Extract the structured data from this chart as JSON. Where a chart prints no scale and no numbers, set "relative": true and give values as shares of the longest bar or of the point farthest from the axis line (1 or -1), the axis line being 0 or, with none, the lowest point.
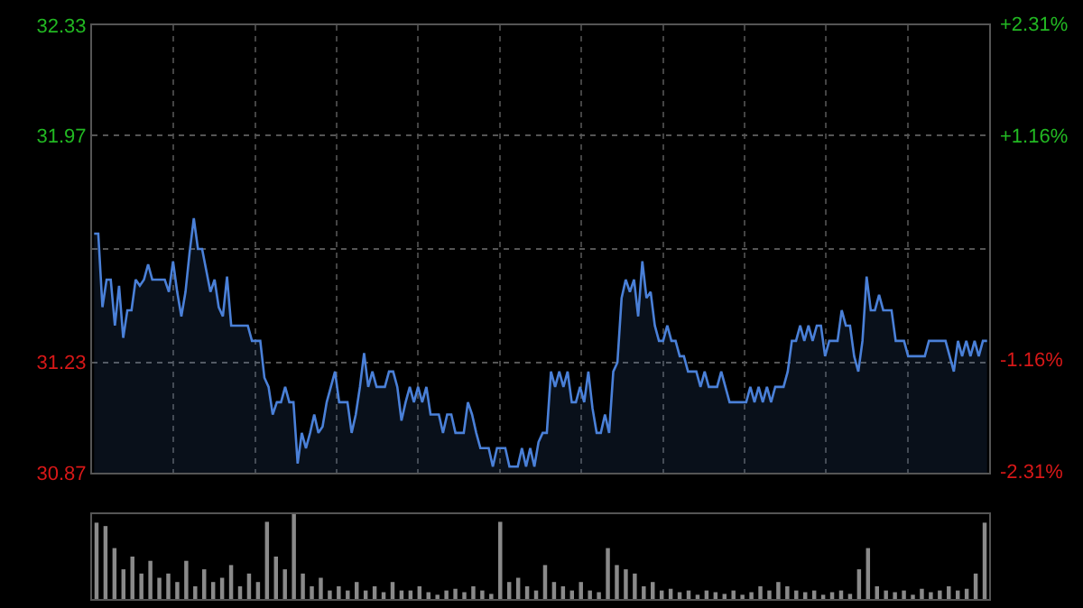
{
  "chart_data": [
    {
      "type": "area",
      "grid": true,
      "tick_labels": "y",
      "categories": [
        null,
        null,
        null,
        null,
        null,
        null,
        null,
        null,
        null,
        null,
        null,
        null,
        null,
        null,
        null,
        null,
        null,
        null,
        null,
        null,
        null,
        null,
        null,
        null,
        null,
        null,
        null,
        null,
        null,
        null,
        null,
        null,
        null,
        null,
        null,
        null,
        null,
        null,
        null,
        null,
        null,
        null,
        null,
        null,
        null,
        null,
        null,
        null,
        null,
        null,
        null,
        null,
        null,
        null,
        null,
        null,
        null,
        null,
        null,
        null,
        null,
        null,
        null,
        null,
        null,
        null,
        null,
        null,
        null,
        null,
        null,
        null,
        null,
        null,
        null,
        null,
        null,
        null,
        null,
        null,
        null,
        null,
        null,
        null,
        null,
        null,
        null,
        null,
        null,
        null,
        null,
        null,
        null,
        null,
        null,
        null,
        null,
        null,
        null,
        null,
        null,
        null,
        null,
        null,
        null,
        null,
        null,
        null,
        null,
        null,
        null,
        null,
        null,
        null,
        null,
        null,
        null,
        null,
        null,
        null,
        null,
        null,
        null,
        null,
        null,
        null,
        null,
        null,
        null,
        null,
        null,
        null,
        null,
        null,
        null,
        null,
        null,
        null,
        null,
        null,
        null,
        null,
        null,
        null,
        null,
        null,
        null,
        null,
        null,
        null,
        null,
        null,
        null,
        null,
        null,
        null,
        null,
        null,
        null,
        null,
        null,
        null,
        null,
        null,
        null,
        null,
        null,
        null,
        null,
        null,
        null,
        null,
        null,
        null,
        null,
        null,
        null,
        null,
        null,
        null,
        null,
        null,
        null,
        null,
        null,
        null,
        null,
        null,
        null,
        null,
        null,
        null,
        null,
        null,
        null,
        null,
        null,
        null,
        null,
        null,
        null,
        null,
        null,
        null,
        null,
        null,
        null,
        null,
        null,
        null,
        null,
        null,
        null,
        null,
        null,
        null
      ],
      "series": [
        {
          "color": "#4a80d8",
          "values": [
            31.65,
            31.65,
            31.41,
            31.5,
            31.5,
            31.35,
            31.48,
            31.31,
            31.4,
            31.4,
            31.5,
            31.48,
            31.5,
            31.55,
            31.5,
            31.5,
            31.5,
            31.5,
            31.46,
            31.56,
            31.46,
            31.38,
            31.46,
            31.59,
            31.7,
            31.6,
            31.6,
            31.53,
            31.46,
            31.5,
            31.41,
            31.38,
            31.51,
            31.35,
            31.35,
            31.35,
            31.35,
            31.35,
            31.3,
            31.3,
            31.3,
            31.18,
            31.15,
            31.06,
            31.1,
            31.1,
            31.15,
            31.1,
            31.1,
            30.9,
            31.0,
            30.95,
            31.0,
            31.06,
            31.0,
            31.02,
            31.1,
            31.15,
            31.2,
            31.1,
            31.1,
            31.1,
            31.0,
            31.06,
            31.15,
            31.26,
            31.15,
            31.2,
            31.15,
            31.15,
            31.15,
            31.2,
            31.2,
            31.15,
            31.04,
            31.1,
            31.15,
            31.1,
            31.15,
            31.1,
            31.15,
            31.06,
            31.06,
            31.06,
            31.0,
            31.06,
            31.06,
            31.0,
            31.0,
            31.0,
            31.1,
            31.06,
            31.0,
            30.95,
            30.95,
            30.95,
            30.89,
            30.95,
            30.95,
            30.95,
            30.89,
            30.89,
            30.89,
            30.95,
            30.89,
            30.95,
            30.89,
            30.97,
            31.0,
            31.0,
            31.2,
            31.15,
            31.2,
            31.15,
            31.2,
            31.1,
            31.1,
            31.15,
            31.1,
            31.2,
            31.08,
            31.0,
            31.0,
            31.06,
            31.0,
            31.2,
            31.23,
            31.44,
            31.5,
            31.46,
            31.5,
            31.38,
            31.56,
            31.44,
            31.46,
            31.35,
            31.3,
            31.3,
            31.35,
            31.3,
            31.3,
            31.25,
            31.25,
            31.2,
            31.2,
            31.2,
            31.15,
            31.2,
            31.15,
            31.15,
            31.15,
            31.2,
            31.15,
            31.1,
            31.1,
            31.1,
            31.1,
            31.1,
            31.15,
            31.1,
            31.15,
            31.1,
            31.15,
            31.1,
            31.15,
            31.15,
            31.15,
            31.2,
            31.3,
            31.3,
            31.35,
            31.3,
            31.35,
            31.3,
            31.35,
            31.35,
            31.25,
            31.3,
            31.3,
            31.3,
            31.4,
            31.35,
            31.35,
            31.25,
            31.2,
            31.3,
            31.51,
            31.4,
            31.4,
            31.45,
            31.4,
            31.4,
            31.4,
            31.3,
            31.3,
            31.3,
            31.25,
            31.25,
            31.25,
            31.25,
            31.25,
            31.3,
            31.3,
            31.3,
            31.3,
            31.3,
            31.25,
            31.2,
            31.3,
            31.25,
            31.3,
            31.25,
            31.3,
            31.25,
            31.3,
            31.3
          ]
        }
      ],
      "ylim": [
        30.87,
        32.33
      ],
      "yticks": [
        30.87,
        31.23,
        {
          "value": 31.6,
          "label": null
        },
        31.97,
        32.33
      ],
      "y2lim": [
        -2.31,
        2.31
      ],
      "y2ticks": [
        {
          "value": -2.31,
          "label": "-2.31%"
        },
        {
          "value": -1.16,
          "label": "-1.16%"
        },
        {
          "value": 0,
          "label": null
        },
        {
          "value": 1.16,
          "label": "+1.16%"
        },
        {
          "value": 2.31,
          "label": "+2.31%"
        }
      ]
    },
    {
      "type": "bar",
      "relative": true,
      "tick_labels": false,
      "categories": [
        null,
        null,
        null,
        null,
        null,
        null,
        null,
        null,
        null,
        null,
        null,
        null,
        null,
        null,
        null,
        null,
        null,
        null,
        null,
        null,
        null,
        null,
        null,
        null,
        null,
        null,
        null,
        null,
        null,
        null,
        null,
        null,
        null,
        null,
        null,
        null,
        null,
        null,
        null,
        null,
        null,
        null,
        null,
        null,
        null,
        null,
        null,
        null,
        null,
        null,
        null,
        null,
        null,
        null,
        null,
        null,
        null,
        null,
        null,
        null,
        null,
        null,
        null,
        null,
        null,
        null,
        null,
        null,
        null,
        null,
        null,
        null,
        null,
        null,
        null,
        null,
        null,
        null,
        null,
        null,
        null,
        null,
        null,
        null,
        null,
        null,
        null,
        null,
        null,
        null,
        null,
        null,
        null,
        null,
        null,
        null,
        null,
        null,
        null,
        null
      ],
      "series": [
        {
          "color": "#8a8a8a",
          "values": [
            0.9,
            0.86,
            0.6,
            0.35,
            0.5,
            0.3,
            0.45,
            0.25,
            0.3,
            0.2,
            0.45,
            0.15,
            0.35,
            0.2,
            0.25,
            0.4,
            0.15,
            0.3,
            0.2,
            0.91,
            0.5,
            0.35,
            1.0,
            0.3,
            0.15,
            0.25,
            0.1,
            0.15,
            0.1,
            0.2,
            0.1,
            0.15,
            0.08,
            0.2,
            0.1,
            0.1,
            0.15,
            0.08,
            0.05,
            0.1,
            0.12,
            0.08,
            0.15,
            0.1,
            0.06,
            0.91,
            0.2,
            0.25,
            0.15,
            0.1,
            0.4,
            0.2,
            0.15,
            0.1,
            0.2,
            0.1,
            0.08,
            0.6,
            0.4,
            0.35,
            0.3,
            0.15,
            0.2,
            0.1,
            0.12,
            0.08,
            0.1,
            0.05,
            0.1,
            0.08,
            0.06,
            0.1,
            0.05,
            0.08,
            0.15,
            0.1,
            0.2,
            0.15,
            0.1,
            0.08,
            0.1,
            0.05,
            0.08,
            0.1,
            0.06,
            0.35,
            0.6,
            0.15,
            0.1,
            0.08,
            0.1,
            0.05,
            0.12,
            0.08,
            0.1,
            0.15,
            0.1,
            0.12,
            0.3,
            0.9
          ]
        }
      ]
    }
  ]
}
